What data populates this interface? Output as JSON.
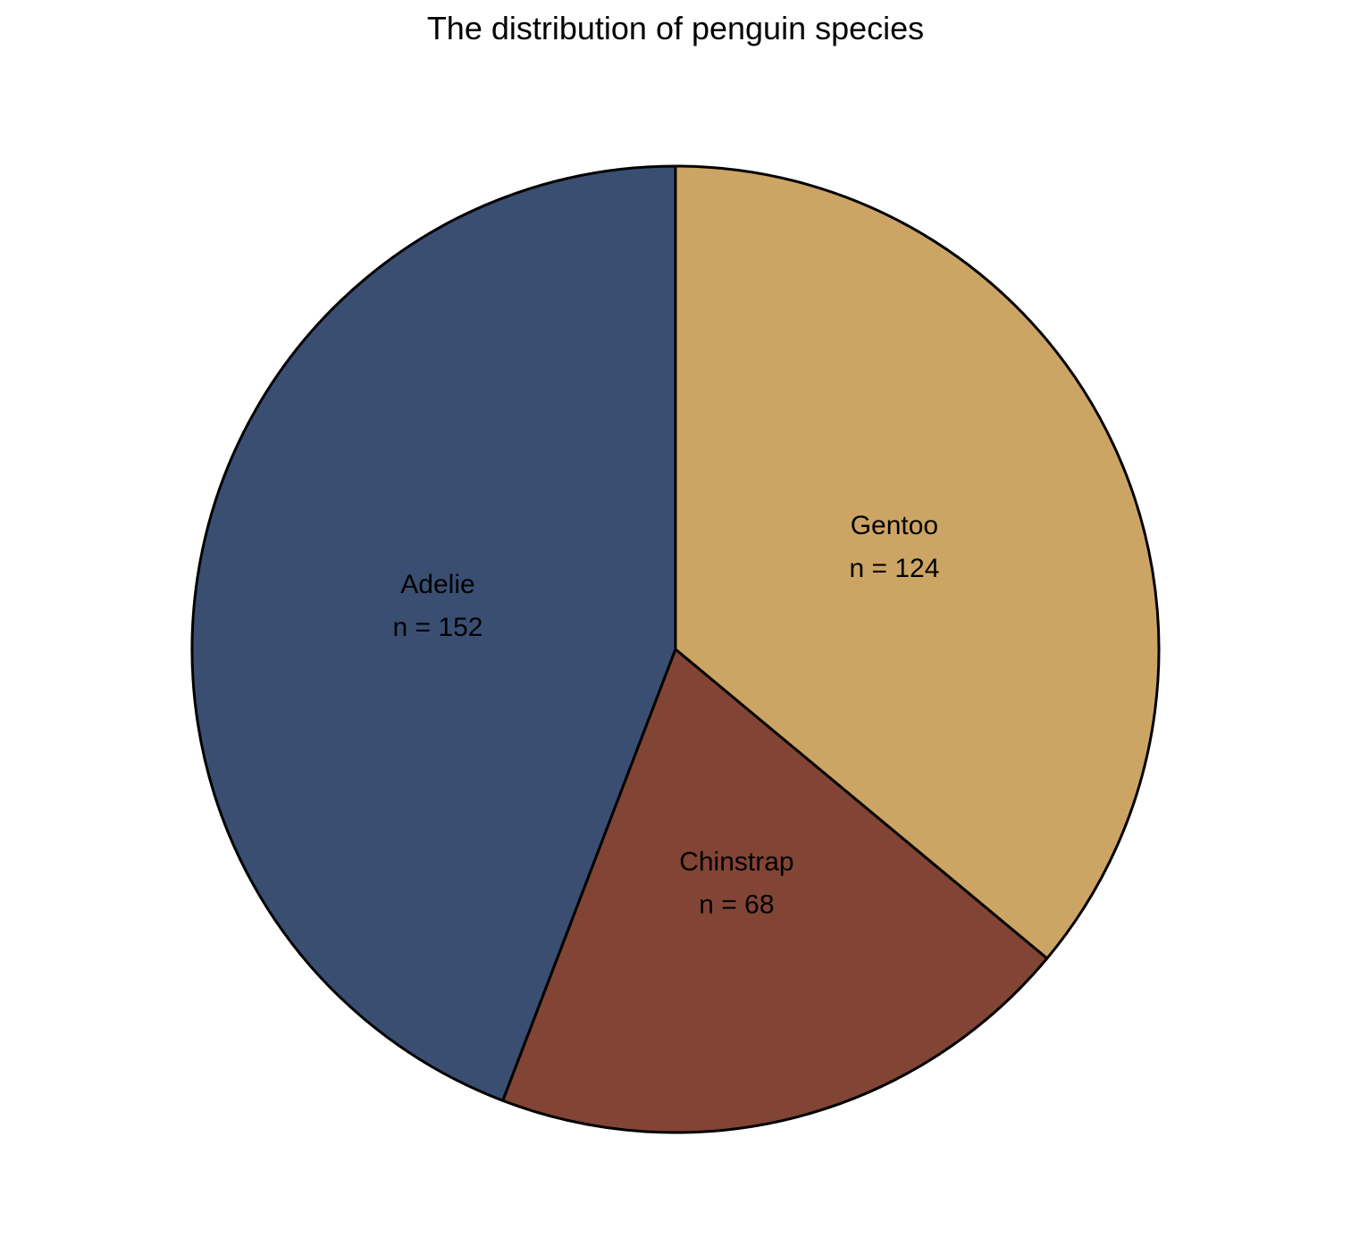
{
  "chart_data": {
    "type": "pie",
    "title": "The distribution of penguin species",
    "categories": [
      "Adelie",
      "Gentoo",
      "Chinstrap"
    ],
    "values": [
      152,
      124,
      68
    ],
    "value_labels": [
      "n = 152",
      "n = 124",
      "n = 68"
    ],
    "colors": [
      "#3a4e72",
      "#cca565",
      "#824434"
    ],
    "stroke_color": "#000000",
    "start": "12 o'clock",
    "direction": "Adelie counterclockwise, Gentoo clockwise, Chinstrap at bottom",
    "legend": "none"
  }
}
